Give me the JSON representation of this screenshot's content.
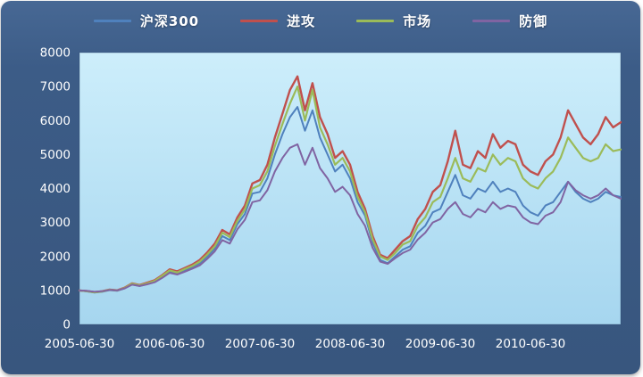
{
  "theme": {
    "frame_background": "#3c5c87",
    "plot_background_top": "#cdeefb",
    "plot_background_bottom": "#a6d6ef",
    "axis_text_color": "#ffffff",
    "plot_border_color": "rgba(40,70,105,0.35)"
  },
  "chart_data": {
    "type": "line",
    "title": "",
    "xlabel": "",
    "ylabel": "",
    "grid": false,
    "legend_position": "top",
    "ylim": [
      0,
      8000
    ],
    "y_ticks": [
      0,
      1000,
      2000,
      3000,
      4000,
      5000,
      6000,
      7000,
      8000
    ],
    "x_count": 73,
    "x_start": "2005-06-30",
    "x_interval": "monthly",
    "x_tick_labels": [
      "2005-06-30",
      "2006-06-30",
      "2007-06-30",
      "2008-06-30",
      "2009-06-30",
      "2010-06-30"
    ],
    "x_tick_positions": [
      0,
      12,
      24,
      36,
      48,
      60
    ],
    "series": [
      {
        "key": "hs300",
        "name": "沪深300",
        "color": "#4f81bd",
        "line_width": 2,
        "values": [
          1000,
          970,
          940,
          960,
          1010,
          990,
          1060,
          1180,
          1130,
          1190,
          1260,
          1400,
          1560,
          1500,
          1590,
          1680,
          1800,
          2000,
          2230,
          2600,
          2480,
          2950,
          3250,
          3850,
          3900,
          4300,
          5000,
          5600,
          6100,
          6400,
          5700,
          6300,
          5500,
          5000,
          4500,
          4700,
          4300,
          3600,
          3200,
          2400,
          1900,
          1800,
          2000,
          2200,
          2300,
          2700,
          2900,
          3300,
          3400,
          3900,
          4400,
          3800,
          3700,
          4000,
          3900,
          4200,
          3900,
          4000,
          3900,
          3500,
          3300,
          3200,
          3500,
          3600,
          3900,
          4200,
          3900,
          3700,
          3600,
          3700,
          3900,
          3800,
          3750
        ]
      },
      {
        "key": "attack",
        "name": "进攻",
        "color": "#c0504d",
        "line_width": 2.4,
        "values": [
          1000,
          980,
          950,
          975,
          1025,
          1005,
          1080,
          1210,
          1160,
          1230,
          1300,
          1450,
          1620,
          1560,
          1660,
          1760,
          1900,
          2120,
          2380,
          2780,
          2650,
          3150,
          3500,
          4150,
          4250,
          4700,
          5500,
          6200,
          6900,
          7300,
          6300,
          7100,
          6100,
          5600,
          4900,
          5100,
          4700,
          3900,
          3400,
          2600,
          2050,
          1950,
          2200,
          2450,
          2600,
          3100,
          3400,
          3900,
          4100,
          4800,
          5700,
          4700,
          4600,
          5100,
          4900,
          5600,
          5200,
          5400,
          5300,
          4700,
          4500,
          4400,
          4800,
          5000,
          5500,
          6300,
          5900,
          5500,
          5300,
          5600,
          6100,
          5800,
          5950
        ]
      },
      {
        "key": "market",
        "name": "市场",
        "color": "#9bbb59",
        "line_width": 2.2,
        "values": [
          1000,
          975,
          945,
          970,
          1020,
          1000,
          1070,
          1200,
          1150,
          1210,
          1280,
          1430,
          1590,
          1530,
          1630,
          1720,
          1850,
          2060,
          2300,
          2700,
          2570,
          3050,
          3380,
          4000,
          4100,
          4500,
          5250,
          5900,
          6500,
          7000,
          6000,
          6900,
          5800,
          5300,
          4700,
          4900,
          4500,
          3750,
          3300,
          2500,
          2000,
          1900,
          2100,
          2350,
          2450,
          2900,
          3150,
          3600,
          3750,
          4300,
          4900,
          4300,
          4200,
          4600,
          4500,
          5000,
          4700,
          4900,
          4800,
          4300,
          4100,
          4000,
          4300,
          4500,
          4900,
          5500,
          5200,
          4900,
          4800,
          4900,
          5300,
          5100,
          5150
        ]
      },
      {
        "key": "defense",
        "name": "防御",
        "color": "#8064a2",
        "line_width": 2,
        "values": [
          1000,
          985,
          960,
          975,
          1015,
          1000,
          1060,
          1170,
          1130,
          1180,
          1240,
          1370,
          1520,
          1470,
          1550,
          1640,
          1740,
          1930,
          2150,
          2480,
          2380,
          2800,
          3080,
          3600,
          3650,
          3950,
          4500,
          4900,
          5200,
          5300,
          4700,
          5200,
          4600,
          4300,
          3900,
          4050,
          3800,
          3250,
          2900,
          2250,
          1850,
          1780,
          1950,
          2100,
          2200,
          2500,
          2700,
          3000,
          3100,
          3400,
          3600,
          3250,
          3150,
          3400,
          3300,
          3600,
          3400,
          3500,
          3450,
          3150,
          3000,
          2950,
          3200,
          3300,
          3600,
          4200,
          3950,
          3800,
          3700,
          3800,
          4000,
          3800,
          3700
        ]
      }
    ]
  }
}
